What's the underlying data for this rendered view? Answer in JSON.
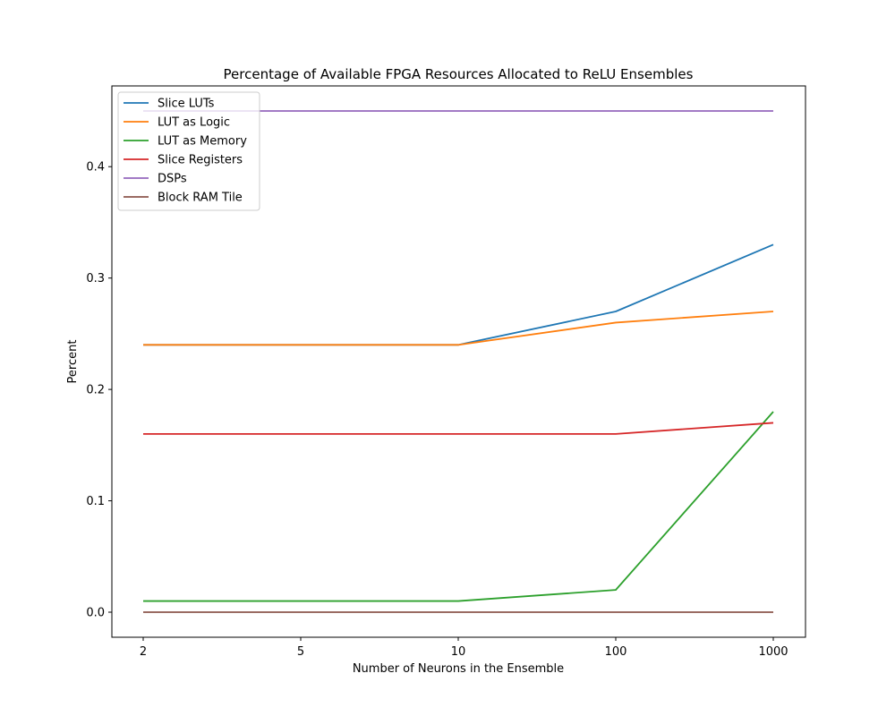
{
  "chart_data": {
    "type": "line",
    "title": "Percentage of Available FPGA Resources Allocated to ReLU Ensembles",
    "xlabel": "Number of Neurons in the Ensemble",
    "ylabel": "Percent",
    "x_ticks": [
      "2",
      "5",
      "10",
      "100",
      "1000"
    ],
    "y_ticks": [
      "0.0",
      "0.1",
      "0.2",
      "0.3",
      "0.4"
    ],
    "y_tick_values": [
      0.0,
      0.1,
      0.2,
      0.3,
      0.4
    ],
    "ylim": [
      -0.0225,
      0.4725
    ],
    "grid": false,
    "legend_position": "top-left",
    "series": [
      {
        "name": "Slice LUTs",
        "color": "#1f77b4",
        "values": [
          0.24,
          0.24,
          0.24,
          0.27,
          0.33
        ]
      },
      {
        "name": "LUT as Logic",
        "color": "#ff7f0e",
        "values": [
          0.24,
          0.24,
          0.24,
          0.26,
          0.27
        ]
      },
      {
        "name": "LUT as Memory",
        "color": "#2ca02c",
        "values": [
          0.01,
          0.01,
          0.01,
          0.02,
          0.18
        ]
      },
      {
        "name": "Slice Registers",
        "color": "#d62728",
        "values": [
          0.16,
          0.16,
          0.16,
          0.16,
          0.17
        ]
      },
      {
        "name": "DSPs",
        "color": "#9467bd",
        "values": [
          0.45,
          0.45,
          0.45,
          0.45,
          0.45
        ]
      },
      {
        "name": "Block RAM Tile",
        "color": "#8c564b",
        "values": [
          0.0,
          0.0,
          0.0,
          0.0,
          0.0
        ]
      }
    ]
  }
}
